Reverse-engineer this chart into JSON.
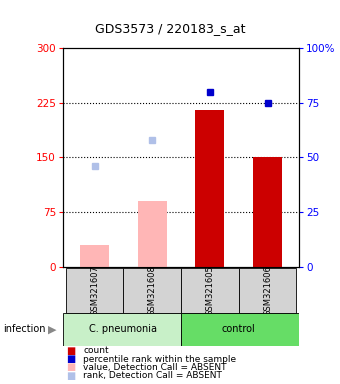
{
  "title": "GDS3573 / 220183_s_at",
  "samples": [
    "GSM321607",
    "GSM321608",
    "GSM321605",
    "GSM321606"
  ],
  "absent_counts": [
    30,
    90,
    null,
    null
  ],
  "present_counts": [
    null,
    null,
    215,
    150
  ],
  "absent_ranks": [
    46,
    58,
    null,
    null
  ],
  "present_ranks": [
    null,
    null,
    80,
    75
  ],
  "ylim_left": [
    0,
    300
  ],
  "ylim_right": [
    0,
    100
  ],
  "yticks_left": [
    0,
    75,
    150,
    225,
    300
  ],
  "yticks_right": [
    0,
    25,
    50,
    75,
    100
  ],
  "ytick_labels_right": [
    "0",
    "25",
    "50",
    "75",
    "100%"
  ],
  "dotted_lines": [
    75,
    150,
    225
  ],
  "bg_color": "#ffffff",
  "absent_bar_color": "#ffb6b6",
  "present_bar_color": "#cc0000",
  "absent_dot_color": "#b0c0e8",
  "present_dot_color": "#0000cc",
  "group_cp_color": "#c8f0c8",
  "group_ctrl_color": "#66dd66",
  "label_bg_color": "#d3d3d3",
  "bar_width": 0.5,
  "xlim": [
    -0.55,
    3.55
  ]
}
